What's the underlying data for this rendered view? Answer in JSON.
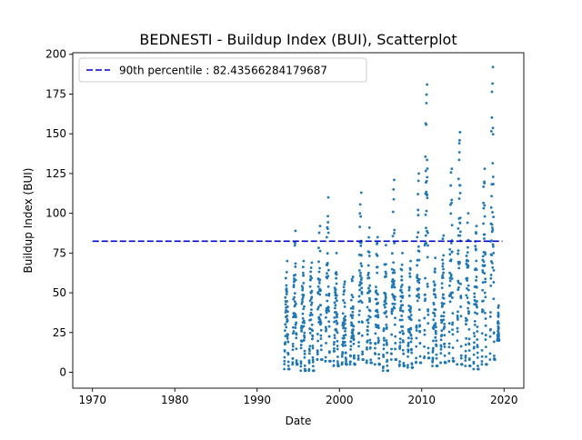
{
  "chart_data": {
    "type": "scatter",
    "title": "BEDNESTI - Buildup Index (BUI), Scatterplot",
    "xlabel": "Date",
    "ylabel": "Buildup Index (BUI)",
    "xlim": [
      1967.6,
      2022.4
    ],
    "ylim": [
      -10,
      201
    ],
    "x_ticks": [
      1970,
      1980,
      1990,
      2000,
      2010,
      2020
    ],
    "y_ticks": [
      0,
      25,
      50,
      75,
      100,
      125,
      150,
      175,
      200
    ],
    "grid": false,
    "legend": {
      "placement": "top-left",
      "entries": [
        "90th percentile : 82.43566284179687"
      ]
    },
    "reference_line": {
      "label": "90th percentile : 82.43566284179687",
      "y": 82.43566284179687,
      "x_start": 1970,
      "x_end": 2019.8,
      "color": "#0000cc",
      "style": "dashed"
    },
    "series": [
      {
        "color": "#1f77b4",
        "marker": "point",
        "seasons": [
          {
            "start": 1993.3,
            "end": 1993.9,
            "min": 2,
            "max": 70
          },
          {
            "start": 1994.3,
            "end": 1994.9,
            "min": 5,
            "max": 89
          },
          {
            "start": 1995.3,
            "end": 1995.9,
            "min": 1,
            "max": 70
          },
          {
            "start": 1996.3,
            "end": 1996.9,
            "min": 1,
            "max": 69
          },
          {
            "start": 1997.3,
            "end": 1997.9,
            "min": 8,
            "max": 92
          },
          {
            "start": 1998.3,
            "end": 1998.9,
            "min": 7,
            "max": 110
          },
          {
            "start": 1999.3,
            "end": 1999.9,
            "min": 4,
            "max": 75
          },
          {
            "start": 2000.3,
            "end": 2000.9,
            "min": 5,
            "max": 57
          },
          {
            "start": 2001.3,
            "end": 2001.9,
            "min": 5,
            "max": 60
          },
          {
            "start": 2002.3,
            "end": 2002.9,
            "min": 8,
            "max": 113
          },
          {
            "start": 2003.3,
            "end": 2003.9,
            "min": 6,
            "max": 91
          },
          {
            "start": 2004.3,
            "end": 2004.9,
            "min": 5,
            "max": 85
          },
          {
            "start": 2005.3,
            "end": 2005.9,
            "min": 1,
            "max": 80
          },
          {
            "start": 2006.3,
            "end": 2006.9,
            "min": 8,
            "max": 121
          },
          {
            "start": 2007.3,
            "end": 2007.9,
            "min": 4,
            "max": 75
          },
          {
            "start": 2008.3,
            "end": 2008.9,
            "min": 3,
            "max": 70
          },
          {
            "start": 2009.3,
            "end": 2009.9,
            "min": 6,
            "max": 125
          },
          {
            "start": 2010.3,
            "end": 2010.9,
            "min": 9,
            "max": 181
          },
          {
            "start": 2011.3,
            "end": 2011.9,
            "min": 4,
            "max": 72
          },
          {
            "start": 2012.3,
            "end": 2012.9,
            "min": 6,
            "max": 86
          },
          {
            "start": 2013.3,
            "end": 2013.9,
            "min": 7,
            "max": 128
          },
          {
            "start": 2014.3,
            "end": 2014.9,
            "min": 5,
            "max": 151
          },
          {
            "start": 2015.3,
            "end": 2015.9,
            "min": 4,
            "max": 100
          },
          {
            "start": 2016.3,
            "end": 2016.9,
            "min": 2,
            "max": 92
          },
          {
            "start": 2017.3,
            "end": 2017.9,
            "min": 5,
            "max": 128
          },
          {
            "start": 2018.3,
            "end": 2018.9,
            "min": 8,
            "max": 192
          },
          {
            "start": 2019.2,
            "end": 2019.4,
            "min": 20,
            "max": 42
          }
        ]
      }
    ]
  }
}
